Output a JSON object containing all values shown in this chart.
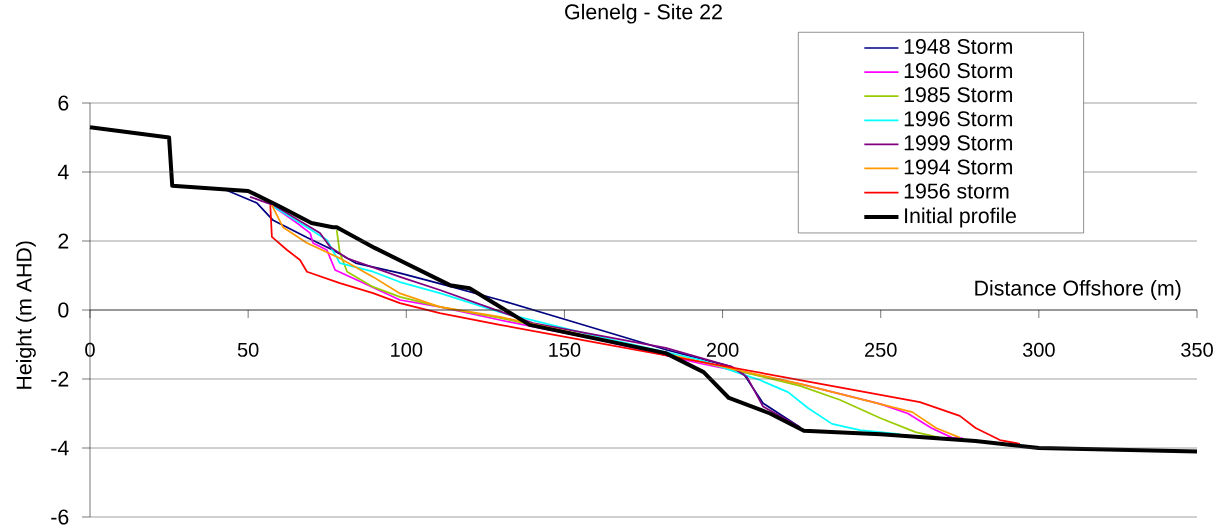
{
  "chart_data": {
    "type": "line",
    "title": "Glenelg - Site 22",
    "xlabel": "Distance Offshore (m)",
    "ylabel": "Height (m AHD)",
    "xlim": [
      0,
      350
    ],
    "xticks": [
      0,
      50,
      100,
      150,
      200,
      250,
      300,
      350
    ],
    "ylim": [
      -6,
      6
    ],
    "yticks": [
      -6,
      -4,
      -2,
      0,
      2,
      4,
      6
    ],
    "grid": "y",
    "legend": "top right",
    "series": [
      {
        "name": "1948 Storm",
        "color": "#000080",
        "x": [
          43,
          52.8,
          57.9,
          68.6,
          76.8,
          84,
          98,
          110,
          129.6,
          150.8,
          182.4,
          203,
          206.5,
          212.8,
          224.5
        ],
        "values": [
          3.48,
          3.1,
          2.6,
          2.1,
          1.74,
          1.36,
          1.07,
          0.78,
          0.29,
          -0.29,
          -1.16,
          -1.65,
          -1.83,
          -2.7,
          -3.4
        ]
      },
      {
        "name": "1960 Storm",
        "color": "#ff00ff",
        "x": [
          58,
          65,
          69.6,
          70.5,
          74.9,
          77.5,
          84.4,
          98,
          110.6,
          129.6,
          161,
          193,
          224.5,
          249.8,
          258.6,
          266,
          272.5,
          276
        ],
        "values": [
          3.0,
          2.55,
          2.23,
          1.94,
          1.74,
          1.16,
          0.87,
          0.29,
          0.09,
          -0.29,
          -0.87,
          -1.55,
          -2.14,
          -2.72,
          -3.0,
          -3.42,
          -3.7,
          -3.72
        ]
      },
      {
        "name": "1985 Storm",
        "color": "#99cc00",
        "x": [
          78,
          79,
          81.3,
          89.5,
          98,
          110.6,
          129.6,
          193,
          224.5,
          237,
          249.8,
          261,
          268.7
        ],
        "values": [
          2.32,
          1.65,
          1.11,
          0.67,
          0.38,
          0.09,
          -0.23,
          -1.5,
          -2.2,
          -2.6,
          -3.13,
          -3.54,
          -3.7
        ]
      },
      {
        "name": "1996 Storm",
        "color": "#00ffff",
        "x": [
          58,
          68.6,
          74.9,
          79,
          89.5,
          98,
          110.6,
          129.6,
          161,
          193,
          208.7,
          211.8,
          220.7,
          227,
          234.6,
          243.4,
          256
        ],
        "values": [
          3.0,
          2.4,
          2.03,
          1.36,
          1.11,
          0.81,
          0.49,
          -0.06,
          -0.78,
          -1.45,
          -1.94,
          -2.03,
          -2.38,
          -2.84,
          -3.3,
          -3.48,
          -3.6
        ]
      },
      {
        "name": "1999 Storm",
        "color": "#800080",
        "x": [
          50.6,
          58,
          72.7,
          75.9,
          81.3,
          98,
          110.6,
          140,
          182,
          203,
          207.7,
          212.8,
          224.5
        ],
        "values": [
          3.28,
          3.04,
          2.23,
          1.83,
          1.5,
          0.96,
          0.58,
          -0.38,
          -1.1,
          -1.65,
          -1.94,
          -2.8,
          -3.4
        ]
      },
      {
        "name": "1994 Storm",
        "color": "#ff9900",
        "x": [
          57.5,
          61,
          68.6,
          79,
          89.5,
          98,
          110.6,
          129.6,
          161,
          193,
          224.5,
          260,
          267.5,
          275
        ],
        "values": [
          3.04,
          2.4,
          1.94,
          1.5,
          0.96,
          0.48,
          0.09,
          -0.2,
          -0.82,
          -1.5,
          -2.14,
          -2.96,
          -3.42,
          -3.7
        ]
      },
      {
        "name": "1956 storm",
        "color": "#ff0000",
        "x": [
          57,
          57.5,
          62.3,
          66.4,
          68.6,
          79,
          89.5,
          98,
          110.6,
          129.6,
          161,
          193,
          224.5,
          262.4,
          275,
          280,
          287.7,
          294
        ],
        "values": [
          3.04,
          2.12,
          1.74,
          1.45,
          1.11,
          0.78,
          0.49,
          0.2,
          -0.09,
          -0.43,
          -0.96,
          -1.5,
          -2.03,
          -2.67,
          -3.07,
          -3.42,
          -3.77,
          -3.88
        ]
      },
      {
        "name": "Initial profile",
        "color": "#000000",
        "x": [
          0,
          25,
          26,
          50,
          60,
          70,
          76.8,
          78,
          90,
          113.8,
          120,
          139,
          182,
          194,
          202,
          215,
          225.7,
          250,
          280,
          300,
          310,
          350
        ],
        "values": [
          5.3,
          5.0,
          3.6,
          3.45,
          3.0,
          2.52,
          2.4,
          2.4,
          1.8,
          0.72,
          0.63,
          -0.43,
          -1.25,
          -1.8,
          -2.55,
          -3.0,
          -3.5,
          -3.6,
          -3.8,
          -4.0,
          -4.02,
          -4.1
        ]
      }
    ]
  }
}
